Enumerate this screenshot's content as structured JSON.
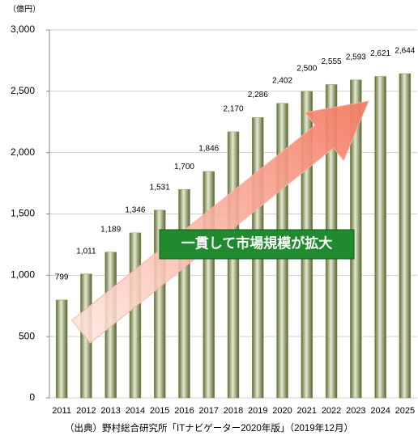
{
  "chart_data": {
    "type": "bar",
    "y_axis_label": "（億円）",
    "annotation": "一貫して市場規模が拡大",
    "source": "（出典）野村総合研究所「ITナビゲーター2020年版」（2019年12月）",
    "categories": [
      "2011",
      "2012",
      "2013",
      "2014",
      "2015",
      "2016",
      "2017",
      "2018",
      "2019",
      "2020",
      "2021",
      "2022",
      "2023",
      "2024",
      "2025"
    ],
    "values": [
      799,
      1011,
      1189,
      1346,
      1531,
      1700,
      1846,
      2170,
      2286,
      2402,
      2500,
      2555,
      2593,
      2621,
      2644
    ],
    "value_labels": [
      "799",
      "1,011",
      "1,189",
      "1,346",
      "1,531",
      "1,700",
      "1,846",
      "2,170",
      "2,286",
      "2,402",
      "2,500",
      "2,555",
      "2,593",
      "2,621",
      "2,644"
    ],
    "color": "#8a9a5b",
    "ylim": [
      0,
      3000
    ],
    "yticks": [
      0,
      500,
      {
        "value": 1000,
        "label": "1,000"
      },
      {
        "value": 1500,
        "label": "1,500"
      },
      {
        "value": 2000,
        "label": "2,000"
      },
      {
        "value": 2500,
        "label": "2,500"
      },
      {
        "value": 3000,
        "label": "3,000"
      }
    ],
    "grid": true
  }
}
